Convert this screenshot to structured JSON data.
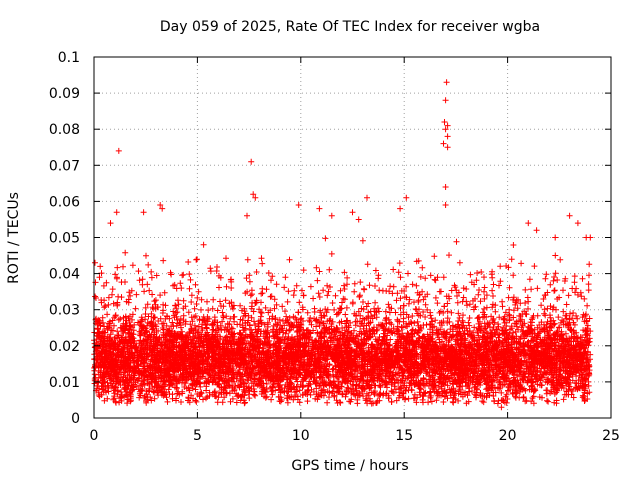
{
  "chart_data": {
    "type": "scatter",
    "title": "Day 059 of 2025, Rate Of TEC Index for receiver wgba",
    "xlabel": "GPS time / hours",
    "ylabel": "ROTI / TECUs",
    "xlim": [
      0,
      25
    ],
    "ylim": [
      0,
      0.1
    ],
    "xticks": [
      0,
      5,
      10,
      15,
      20,
      25
    ],
    "yticks": [
      0,
      0.01,
      0.02,
      0.03,
      0.04,
      0.05,
      0.06,
      0.07,
      0.08,
      0.09,
      0.1
    ],
    "xtick_labels": [
      "0",
      "5",
      "10",
      "15",
      "20",
      "25"
    ],
    "ytick_labels": [
      "0",
      "0.01",
      "0.02",
      "0.03",
      "0.04",
      "0.05",
      "0.06",
      "0.07",
      "0.08",
      "0.09",
      "0.1"
    ],
    "grid": true,
    "marker": "+",
    "marker_color": "#ff0000",
    "series": [
      {
        "name": "",
        "x_range": [
          0,
          24
        ],
        "typical_y_range": [
          0.005,
          0.035
        ],
        "median_y": 0.016,
        "point_count_approx": 8000,
        "notable_points": [
          {
            "x": 0.05,
            "y": 0.043
          },
          {
            "x": 0.3,
            "y": 0.042
          },
          {
            "x": 0.8,
            "y": 0.054
          },
          {
            "x": 1.2,
            "y": 0.074
          },
          {
            "x": 1.1,
            "y": 0.057
          },
          {
            "x": 2.4,
            "y": 0.057
          },
          {
            "x": 3.2,
            "y": 0.059
          },
          {
            "x": 3.3,
            "y": 0.058
          },
          {
            "x": 5.3,
            "y": 0.048
          },
          {
            "x": 7.4,
            "y": 0.056
          },
          {
            "x": 7.6,
            "y": 0.071
          },
          {
            "x": 7.7,
            "y": 0.062
          },
          {
            "x": 7.8,
            "y": 0.061
          },
          {
            "x": 9.9,
            "y": 0.059
          },
          {
            "x": 10.9,
            "y": 0.058
          },
          {
            "x": 11.5,
            "y": 0.056
          },
          {
            "x": 12.5,
            "y": 0.057
          },
          {
            "x": 12.8,
            "y": 0.055
          },
          {
            "x": 13.2,
            "y": 0.061
          },
          {
            "x": 14.8,
            "y": 0.058
          },
          {
            "x": 15.1,
            "y": 0.061
          },
          {
            "x": 17.05,
            "y": 0.093
          },
          {
            "x": 17.0,
            "y": 0.088
          },
          {
            "x": 16.95,
            "y": 0.082
          },
          {
            "x": 17.1,
            "y": 0.081
          },
          {
            "x": 17.0,
            "y": 0.08
          },
          {
            "x": 17.1,
            "y": 0.078
          },
          {
            "x": 16.9,
            "y": 0.076
          },
          {
            "x": 17.1,
            "y": 0.075
          },
          {
            "x": 17.0,
            "y": 0.064
          },
          {
            "x": 17.0,
            "y": 0.059
          },
          {
            "x": 20.2,
            "y": 0.044
          },
          {
            "x": 21.0,
            "y": 0.054
          },
          {
            "x": 21.4,
            "y": 0.052
          },
          {
            "x": 22.3,
            "y": 0.05
          },
          {
            "x": 23.0,
            "y": 0.056
          },
          {
            "x": 23.4,
            "y": 0.054
          },
          {
            "x": 23.8,
            "y": 0.05
          },
          {
            "x": 24.0,
            "y": 0.05
          },
          {
            "x": 19.7,
            "y": 0.003
          }
        ]
      }
    ]
  }
}
